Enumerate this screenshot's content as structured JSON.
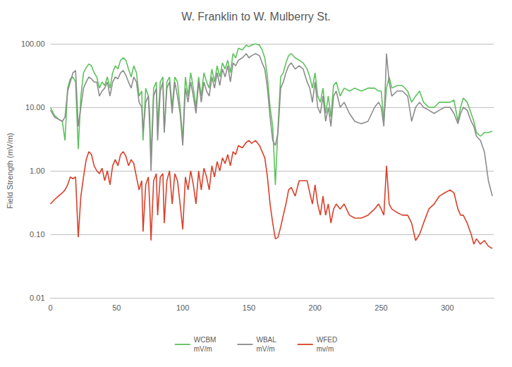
{
  "chart_data": {
    "type": "line",
    "title": "W. Franklin to W. Mulberry St.",
    "y_label": "Field Strength (mV/m)",
    "log": "y",
    "grid": true,
    "legend": "bottom",
    "xlim": [
      0,
      335
    ],
    "xticks": [
      0,
      50,
      100,
      150,
      200,
      250,
      300
    ],
    "ylim": [
      0.01,
      100
    ],
    "yticks": [
      0.01,
      {
        "value": 0.1,
        "label": "0.10"
      },
      {
        "value": 1,
        "label": "1.00"
      },
      {
        "value": 10,
        "label": "10.00"
      },
      {
        "value": 100,
        "label": "100.00"
      }
    ],
    "x": [
      0,
      3,
      6,
      9,
      11,
      13,
      15,
      17,
      19,
      21,
      23,
      25,
      27,
      29,
      31,
      33,
      35,
      37,
      39,
      41,
      43,
      45,
      47,
      49,
      51,
      53,
      55,
      57,
      59,
      61,
      63,
      65,
      67,
      69,
      70,
      72,
      74,
      75,
      76,
      78,
      80,
      81,
      83,
      85,
      86,
      88,
      90,
      92,
      94,
      96,
      98,
      100,
      102,
      104,
      106,
      108,
      110,
      112,
      114,
      116,
      118,
      120,
      122,
      124,
      126,
      128,
      130,
      132,
      134,
      136,
      138,
      140,
      142,
      145,
      148,
      150,
      152,
      155,
      158,
      160,
      162,
      164,
      166,
      168,
      170,
      172,
      174,
      176,
      178,
      180,
      182,
      185,
      188,
      191,
      194,
      196,
      198,
      200,
      202,
      204,
      206,
      208,
      210,
      212,
      214,
      216,
      219,
      222,
      226,
      230,
      235,
      240,
      245,
      248,
      250,
      252,
      254,
      256,
      258,
      262,
      266,
      270,
      273,
      276,
      279,
      282,
      286,
      290,
      294,
      298,
      302,
      305,
      308,
      310,
      312,
      315,
      318,
      320,
      322,
      325,
      328,
      331,
      334
    ],
    "series": [
      {
        "name": "WCBM\nmV/m",
        "color": "#5cc25c",
        "values": [
          10,
          7.5,
          6.5,
          6,
          3,
          20,
          28,
          30,
          25,
          2.2,
          15,
          35,
          42,
          48,
          45,
          35,
          30,
          20,
          25,
          22,
          30,
          20,
          35,
          45,
          40,
          55,
          60,
          55,
          40,
          30,
          45,
          35,
          15,
          18,
          3,
          20,
          15,
          8,
          1.5,
          20,
          25,
          5,
          25,
          30,
          4,
          25,
          30,
          10,
          30,
          25,
          10,
          3,
          30,
          15,
          35,
          20,
          10,
          30,
          15,
          35,
          25,
          20,
          40,
          25,
          45,
          30,
          50,
          40,
          55,
          35,
          70,
          60,
          85,
          80,
          95,
          90,
          95,
          100,
          95,
          80,
          60,
          30,
          10,
          5,
          0.6,
          5,
          30,
          35,
          50,
          65,
          70,
          60,
          55,
          50,
          40,
          30,
          20,
          35,
          15,
          12,
          20,
          8,
          15,
          7,
          22,
          25,
          15,
          20,
          18,
          20,
          18,
          20,
          20,
          18,
          18,
          6,
          20,
          30,
          20,
          22,
          22,
          18,
          12,
          15,
          18,
          12,
          10,
          10,
          12,
          12,
          12,
          13,
          6,
          10,
          14,
          12,
          8,
          6,
          4,
          3.5,
          4,
          4,
          4.2
        ]
      },
      {
        "name": "WBAL\nmV/m",
        "color": "#8c8c8c",
        "values": [
          9,
          7,
          6.5,
          6,
          7,
          18,
          25,
          35,
          38,
          5,
          10,
          20,
          25,
          30,
          28,
          25,
          25,
          15,
          18,
          20,
          25,
          15,
          25,
          30,
          28,
          35,
          38,
          32,
          25,
          20,
          30,
          25,
          12,
          10,
          4,
          12,
          15,
          5,
          1.0,
          15,
          20,
          3,
          18,
          25,
          4,
          20,
          25,
          8,
          25,
          15,
          8,
          2.5,
          20,
          12,
          25,
          15,
          8,
          25,
          12,
          25,
          18,
          15,
          30,
          20,
          35,
          22,
          40,
          30,
          45,
          25,
          50,
          45,
          55,
          60,
          70,
          60,
          65,
          70,
          65,
          50,
          40,
          20,
          7,
          3,
          2.5,
          4,
          20,
          25,
          35,
          45,
          50,
          40,
          45,
          40,
          25,
          20,
          12,
          25,
          10,
          8,
          15,
          6,
          10,
          5,
          15,
          18,
          10,
          12,
          8,
          6,
          5.5,
          6,
          10,
          12,
          10,
          5,
          70,
          25,
          15,
          18,
          18,
          15,
          6,
          10,
          12,
          10,
          9,
          8,
          9,
          10,
          10,
          8,
          5.5,
          8,
          10,
          9,
          6,
          5,
          3.5,
          3,
          2,
          0.7,
          0.4
        ]
      },
      {
        "name": "WFED\nmv/m",
        "color": "#d9412b",
        "values": [
          0.3,
          0.35,
          0.4,
          0.45,
          0.5,
          0.6,
          0.8,
          0.75,
          0.8,
          0.09,
          0.4,
          0.8,
          1.5,
          2.0,
          1.8,
          1.2,
          1.0,
          0.9,
          1.1,
          0.7,
          1.0,
          0.6,
          1.2,
          1.5,
          1.2,
          1.8,
          2.0,
          1.7,
          1.2,
          1.5,
          1.3,
          0.8,
          0.5,
          0.7,
          0.11,
          0.6,
          0.8,
          0.3,
          0.08,
          0.7,
          0.9,
          0.2,
          0.8,
          0.9,
          0.15,
          0.7,
          1.0,
          0.3,
          0.9,
          0.7,
          0.3,
          0.12,
          0.8,
          0.5,
          1.0,
          0.6,
          0.3,
          1.0,
          0.5,
          1.1,
          0.8,
          0.5,
          1.2,
          0.8,
          1.4,
          1.0,
          1.6,
          1.3,
          1.8,
          1.2,
          2.0,
          1.8,
          2.5,
          2.3,
          2.8,
          3.0,
          2.7,
          3.0,
          2.5,
          2.0,
          1.6,
          0.8,
          0.3,
          0.15,
          0.085,
          0.09,
          0.13,
          0.2,
          0.3,
          0.5,
          0.55,
          0.4,
          0.7,
          0.7,
          0.7,
          0.45,
          0.3,
          0.6,
          0.3,
          0.2,
          0.4,
          0.2,
          0.3,
          0.15,
          0.25,
          0.3,
          0.25,
          0.3,
          0.2,
          0.18,
          0.18,
          0.2,
          0.25,
          0.3,
          0.25,
          0.2,
          1.2,
          0.3,
          0.25,
          0.22,
          0.2,
          0.2,
          0.15,
          0.08,
          0.1,
          0.15,
          0.25,
          0.3,
          0.4,
          0.45,
          0.5,
          0.45,
          0.25,
          0.2,
          0.2,
          0.15,
          0.1,
          0.07,
          0.085,
          0.07,
          0.08,
          0.065,
          0.06
        ]
      }
    ]
  }
}
